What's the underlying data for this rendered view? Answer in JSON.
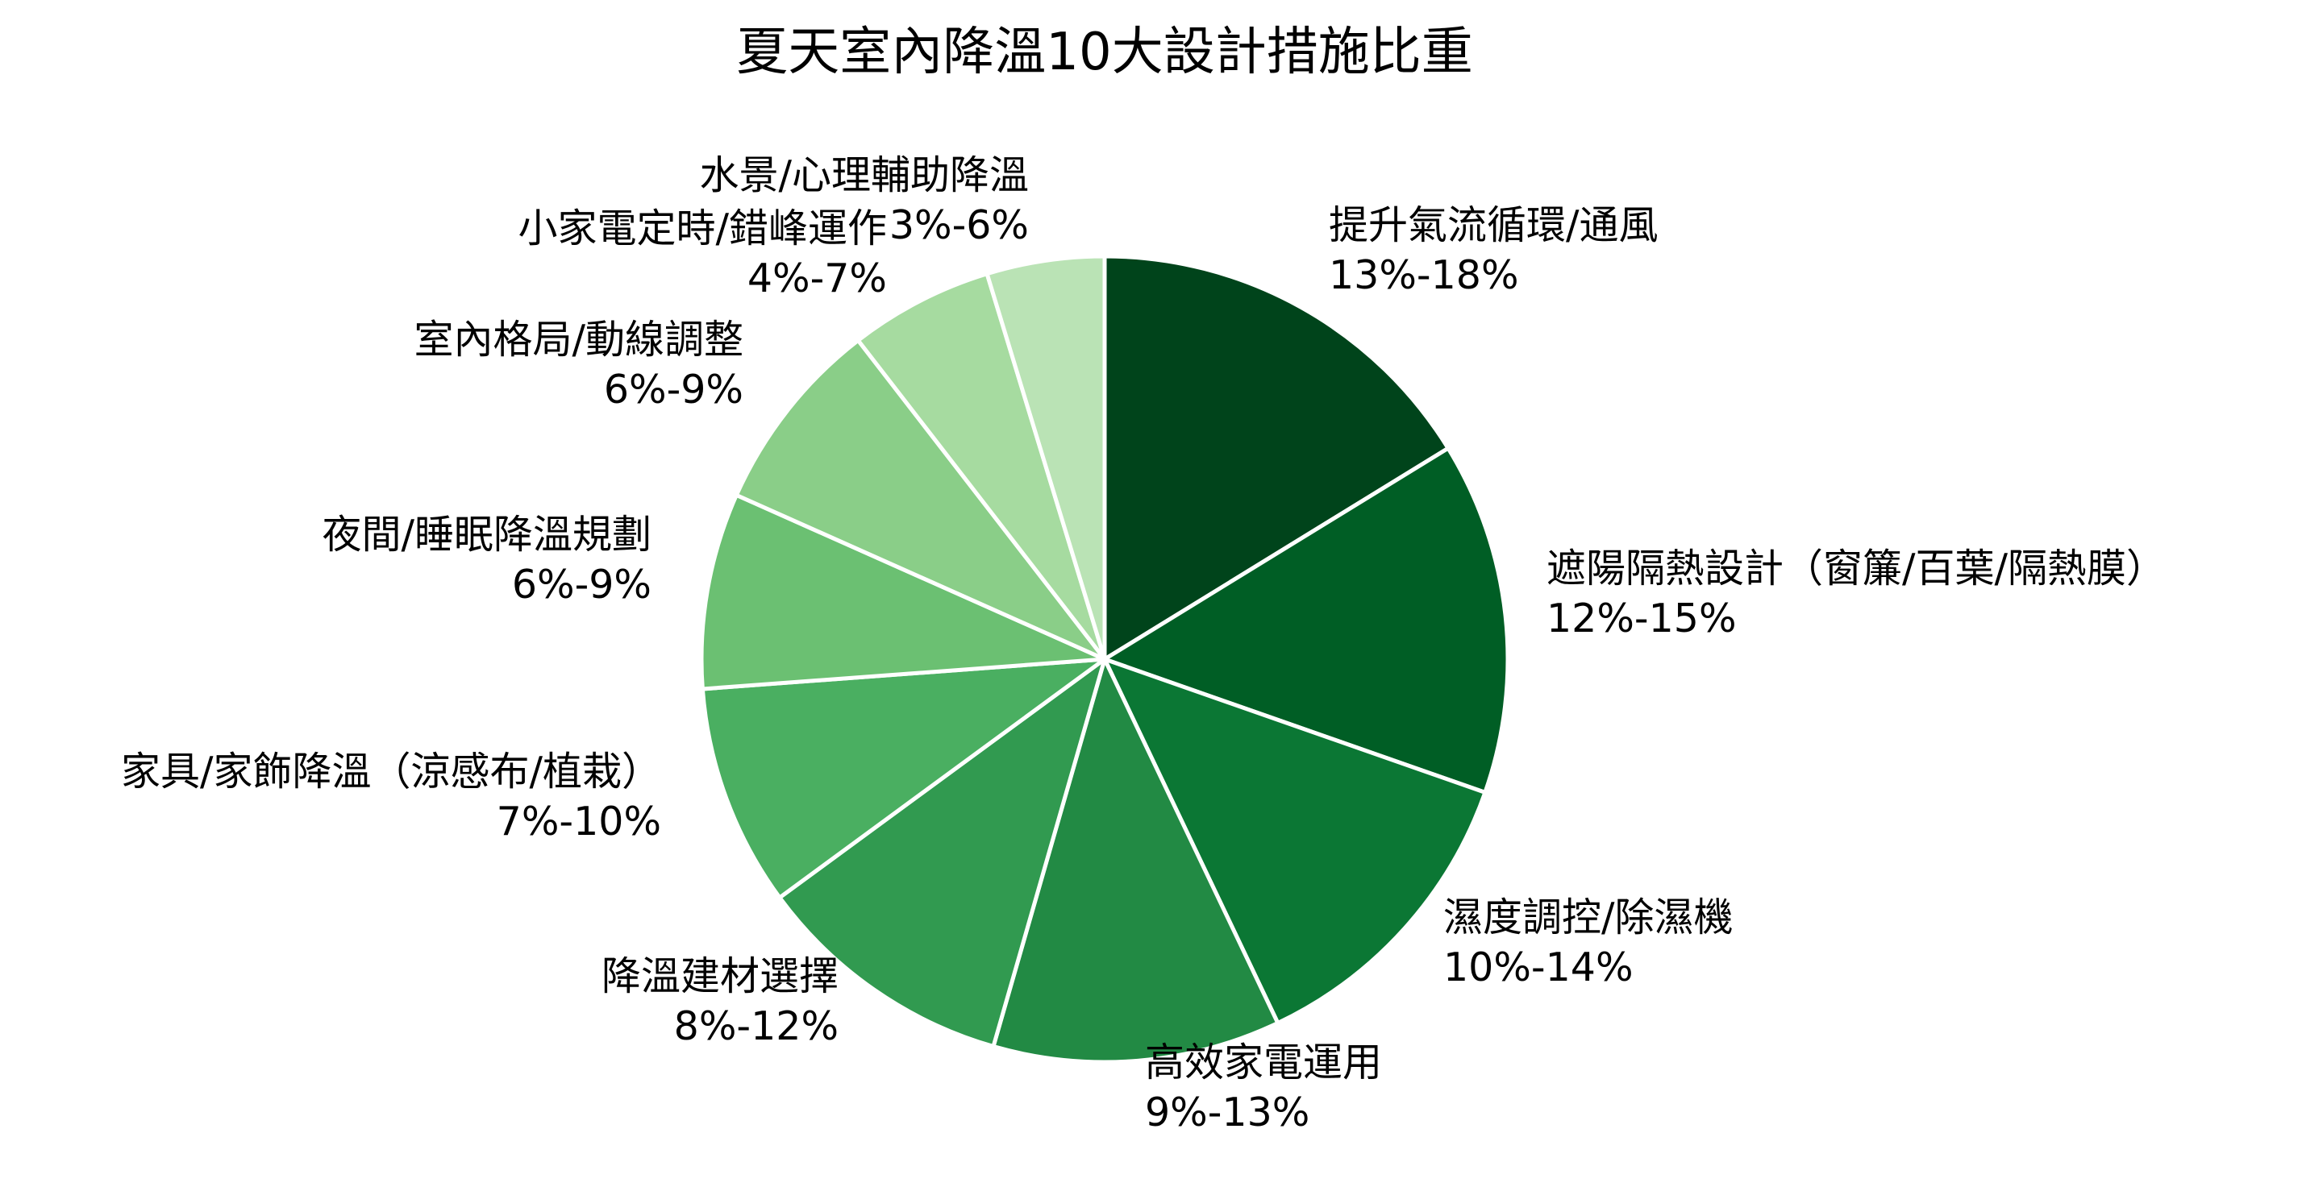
{
  "chart_data": {
    "type": "pie",
    "title": "夏天室內降溫10大設計措施比重",
    "start": "12 o'clock",
    "direction": "clockwise",
    "edge_color": "#ffffff",
    "slices": [
      {
        "label": "提升氣流循環/通風",
        "range": "13%-18%",
        "value": 15.5,
        "color": "#00441b"
      },
      {
        "label": "遮陽隔熱設計（窗簾/百葉/隔熱膜）",
        "range": "12%-15%",
        "value": 13.5,
        "color": "#005e25"
      },
      {
        "label": "濕度調控/除濕機",
        "range": "10%-14%",
        "value": 12.0,
        "color": "#0b7734"
      },
      {
        "label": "高效家電運用",
        "range": "9%-13%",
        "value": 11.0,
        "color": "#228a44"
      },
      {
        "label": "降溫建材選擇",
        "range": "8%-12%",
        "value": 10.0,
        "color": "#319a50"
      },
      {
        "label": "家具/家飾降溫（涼感布/植栽）",
        "range": "7%-10%",
        "value": 8.5,
        "color": "#4aaf61"
      },
      {
        "label": "夜間/睡眠降溫規劃",
        "range": "6%-9%",
        "value": 7.5,
        "color": "#6bc072"
      },
      {
        "label": "室內格局/動線調整",
        "range": "6%-9%",
        "value": 7.5,
        "color": "#8ace88"
      },
      {
        "label": "小家電定時/錯峰運作",
        "range": "4%-7%",
        "value": 5.5,
        "color": "#a6dba0"
      },
      {
        "label": "水景/心理輔助降溫",
        "range": "3%-6%",
        "value": 4.5,
        "color": "#bae3b5"
      }
    ]
  }
}
